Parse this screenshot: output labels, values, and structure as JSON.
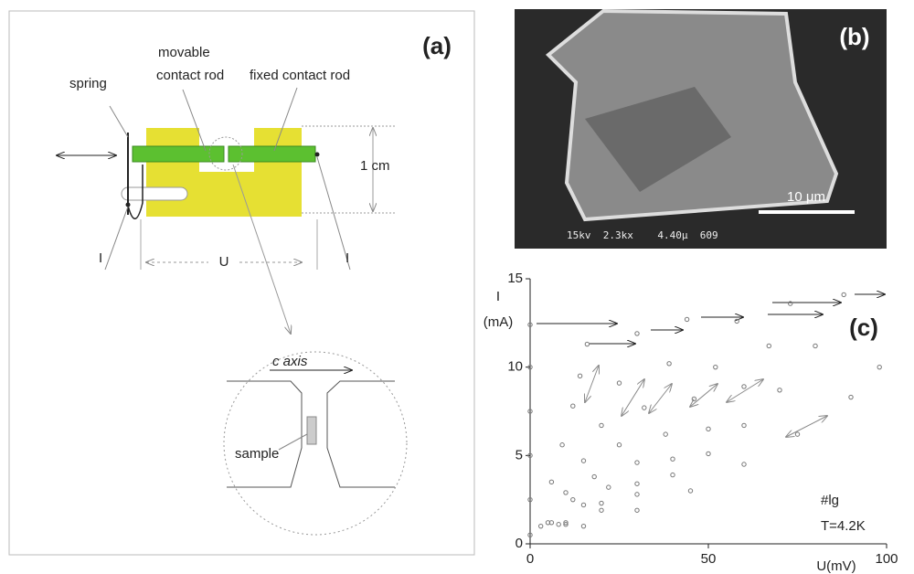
{
  "panel_a": {
    "label": "(a)",
    "spring": "spring",
    "movable_1": "movable",
    "movable_2": "contact rod",
    "fixed": "fixed contact rod",
    "dimension": "1 cm",
    "current_left": "I",
    "voltage": "U",
    "current_right": "I",
    "axis": "c axis",
    "sample": "sample"
  },
  "panel_b": {
    "label": "(b)",
    "scale": "10 μm",
    "footer": "15kv  2.3kx    4.40μ  609"
  },
  "chart_data": {
    "type": "scatter",
    "label": "(c)",
    "ylabel": "I",
    "ylabel_unit": "(mA)",
    "xlabel": "U(mV)",
    "annotations": [
      "#lg",
      "T=4.2K"
    ],
    "color": "#777",
    "xlim": [
      0,
      100
    ],
    "ylim": [
      0,
      15
    ],
    "xticks": [
      0,
      50,
      100
    ],
    "yticks": [
      0,
      5,
      10,
      15
    ],
    "series": [
      {
        "x": [
          0,
          0,
          0,
          0,
          0,
          0
        ],
        "values": [
          0.5,
          2.5,
          5,
          7.5,
          10,
          12.4
        ]
      },
      {
        "x": [
          3,
          6,
          9,
          12,
          14,
          16
        ],
        "values": [
          1.0,
          3.5,
          5.6,
          7.8,
          9.5,
          11.3
        ]
      },
      {
        "x": [
          5,
          10,
          15,
          20,
          25,
          30
        ],
        "values": [
          1.2,
          2.9,
          4.7,
          6.7,
          9.1,
          11.9
        ]
      },
      {
        "x": [
          6,
          12,
          18,
          25,
          32,
          39,
          44
        ],
        "values": [
          1.2,
          2.5,
          3.8,
          5.6,
          7.7,
          10.2,
          12.7
        ]
      },
      {
        "x": [
          8,
          15,
          22,
          30,
          38,
          46,
          52,
          58
        ],
        "values": [
          1.1,
          2.2,
          3.2,
          4.6,
          6.2,
          8.2,
          10.0,
          12.6
        ]
      },
      {
        "x": [
          10,
          20,
          30,
          40,
          50,
          60,
          67,
          73
        ],
        "values": [
          1.2,
          2.3,
          3.4,
          4.8,
          6.5,
          8.9,
          11.2,
          13.6
        ]
      },
      {
        "x": [
          10,
          20,
          30,
          40,
          50,
          60,
          70,
          80,
          88
        ],
        "values": [
          1.1,
          1.9,
          2.8,
          3.9,
          5.1,
          6.7,
          8.7,
          11.2,
          14.1
        ]
      },
      {
        "x": [
          15,
          30,
          45,
          60,
          75,
          90,
          98
        ],
        "values": [
          1.0,
          1.9,
          3.0,
          4.5,
          6.2,
          8.3,
          10.0
        ]
      }
    ]
  }
}
